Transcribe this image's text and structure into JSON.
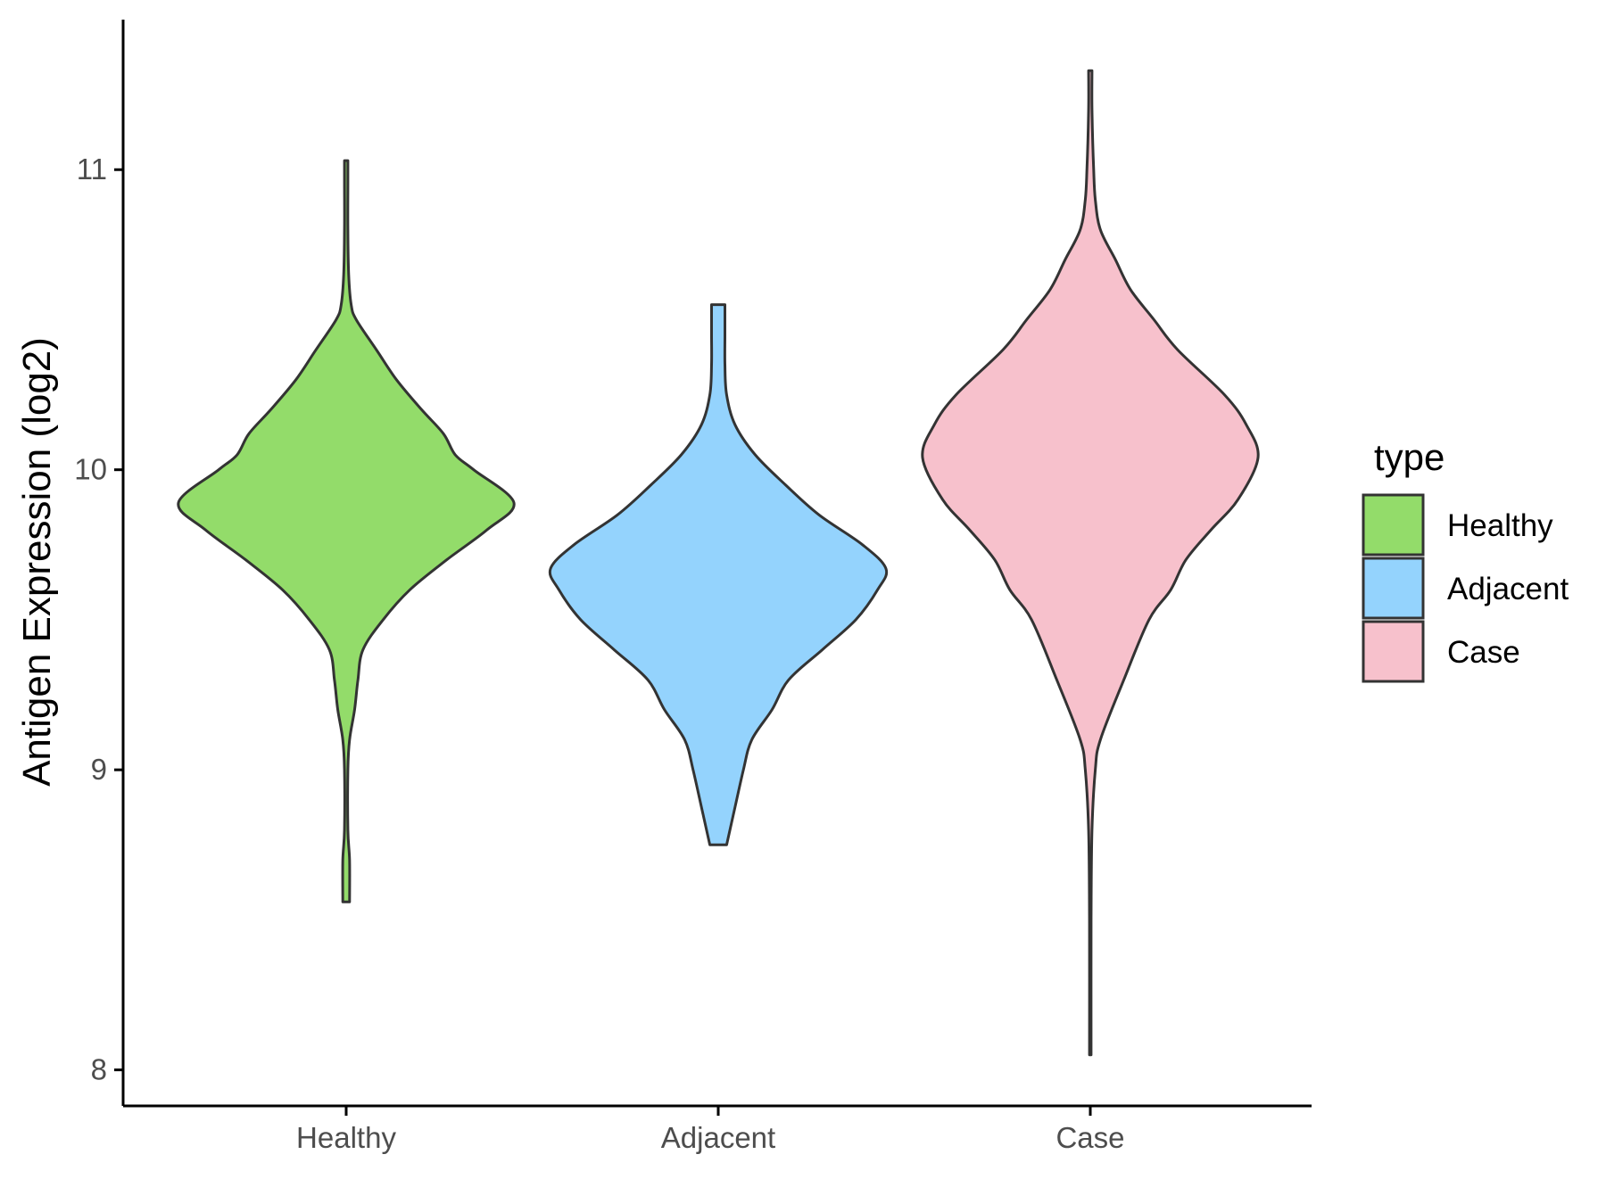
{
  "chart_data": {
    "type": "violin",
    "title": "",
    "xlabel": "",
    "ylabel": "Antigen Expression (log2)",
    "ylim": [
      7.88,
      11.5
    ],
    "yticks": [
      8,
      9,
      10,
      11
    ],
    "ytick_labels": [
      "8",
      "9",
      "10",
      "11"
    ],
    "categories": [
      "Healthy",
      "Adjacent",
      "Case"
    ],
    "legend": {
      "title": "type",
      "position": "right",
      "entries": [
        "Healthy",
        "Adjacent",
        "Case"
      ]
    },
    "grid": false,
    "series": [
      {
        "name": "Healthy",
        "color": "#93dc6a",
        "min": 8.56,
        "max": 11.03,
        "density_profile": [
          [
            8.56,
            0.02
          ],
          [
            8.7,
            0.02
          ],
          [
            8.8,
            0.01
          ],
          [
            9.0,
            0.01
          ],
          [
            9.1,
            0.02
          ],
          [
            9.2,
            0.05
          ],
          [
            9.3,
            0.07
          ],
          [
            9.4,
            0.1
          ],
          [
            9.5,
            0.22
          ],
          [
            9.6,
            0.38
          ],
          [
            9.7,
            0.6
          ],
          [
            9.8,
            0.84
          ],
          [
            9.89,
            1.0
          ],
          [
            10.0,
            0.76
          ],
          [
            10.05,
            0.65
          ],
          [
            10.12,
            0.58
          ],
          [
            10.2,
            0.45
          ],
          [
            10.3,
            0.3
          ],
          [
            10.4,
            0.18
          ],
          [
            10.5,
            0.06
          ],
          [
            10.55,
            0.03
          ],
          [
            10.65,
            0.015
          ],
          [
            10.8,
            0.01
          ],
          [
            10.95,
            0.01
          ],
          [
            11.03,
            0.01
          ]
        ]
      },
      {
        "name": "Adjacent",
        "color": "#94d3fd",
        "min": 8.75,
        "max": 10.55,
        "density_profile": [
          [
            8.75,
            0.05
          ],
          [
            8.85,
            0.09
          ],
          [
            9.0,
            0.15
          ],
          [
            9.1,
            0.2
          ],
          [
            9.2,
            0.32
          ],
          [
            9.3,
            0.42
          ],
          [
            9.4,
            0.62
          ],
          [
            9.5,
            0.82
          ],
          [
            9.6,
            0.95
          ],
          [
            9.67,
            1.0
          ],
          [
            9.75,
            0.86
          ],
          [
            9.85,
            0.6
          ],
          [
            9.95,
            0.4
          ],
          [
            10.05,
            0.22
          ],
          [
            10.15,
            0.1
          ],
          [
            10.25,
            0.05
          ],
          [
            10.35,
            0.04
          ],
          [
            10.45,
            0.04
          ],
          [
            10.55,
            0.04
          ]
        ]
      },
      {
        "name": "Case",
        "color": "#f7c1cc",
        "min": 8.05,
        "max": 11.33,
        "density_profile": [
          [
            8.05,
            0.005
          ],
          [
            8.5,
            0.005
          ],
          [
            8.8,
            0.01
          ],
          [
            9.0,
            0.03
          ],
          [
            9.1,
            0.06
          ],
          [
            9.3,
            0.2
          ],
          [
            9.5,
            0.35
          ],
          [
            9.6,
            0.48
          ],
          [
            9.7,
            0.57
          ],
          [
            9.8,
            0.72
          ],
          [
            9.9,
            0.88
          ],
          [
            10.04,
            1.0
          ],
          [
            10.15,
            0.93
          ],
          [
            10.25,
            0.8
          ],
          [
            10.4,
            0.52
          ],
          [
            10.5,
            0.38
          ],
          [
            10.6,
            0.24
          ],
          [
            10.7,
            0.15
          ],
          [
            10.8,
            0.06
          ],
          [
            10.9,
            0.03
          ],
          [
            11.0,
            0.02
          ],
          [
            11.2,
            0.01
          ],
          [
            11.33,
            0.01
          ]
        ]
      }
    ]
  }
}
